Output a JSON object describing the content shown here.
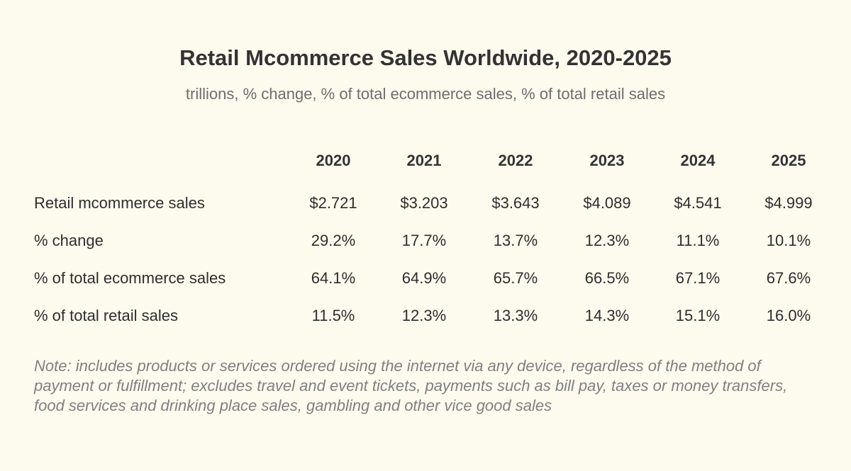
{
  "chart_data": {
    "type": "table",
    "title": "Retail Mcommerce Sales Worldwide, 2020-2025",
    "subtitle": "trillions, % change, % of total ecommerce sales, % of total retail sales",
    "columns": [
      "2020",
      "2021",
      "2022",
      "2023",
      "2024",
      "2025"
    ],
    "rows": [
      {
        "label": "Retail mcommerce sales",
        "values": [
          "$2.721",
          "$3.203",
          "$3.643",
          "$4.089",
          "$4.541",
          "$4.999"
        ]
      },
      {
        "label": "% change",
        "values": [
          "29.2%",
          "17.7%",
          "13.7%",
          "12.3%",
          "11.1%",
          "10.1%"
        ]
      },
      {
        "label": "% of total ecommerce sales",
        "values": [
          "64.1%",
          "64.9%",
          "65.7%",
          "66.5%",
          "67.1%",
          "67.6%"
        ]
      },
      {
        "label": "% of total retail sales",
        "values": [
          "11.5%",
          "12.3%",
          "13.3%",
          "14.3%",
          "15.1%",
          "16.0%"
        ]
      }
    ],
    "note": "Note: includes products or services ordered using the internet via any device, regardless of the method of payment or fulfillment; excludes travel and event tickets, payments such as bill pay, taxes or money transfers, food services and drinking place sales, gambling and other vice good sales"
  },
  "colors": {
    "background": "#fdfaee",
    "text": "#2e2e2e",
    "subtitle": "#6e6e6e",
    "note": "#808080"
  }
}
